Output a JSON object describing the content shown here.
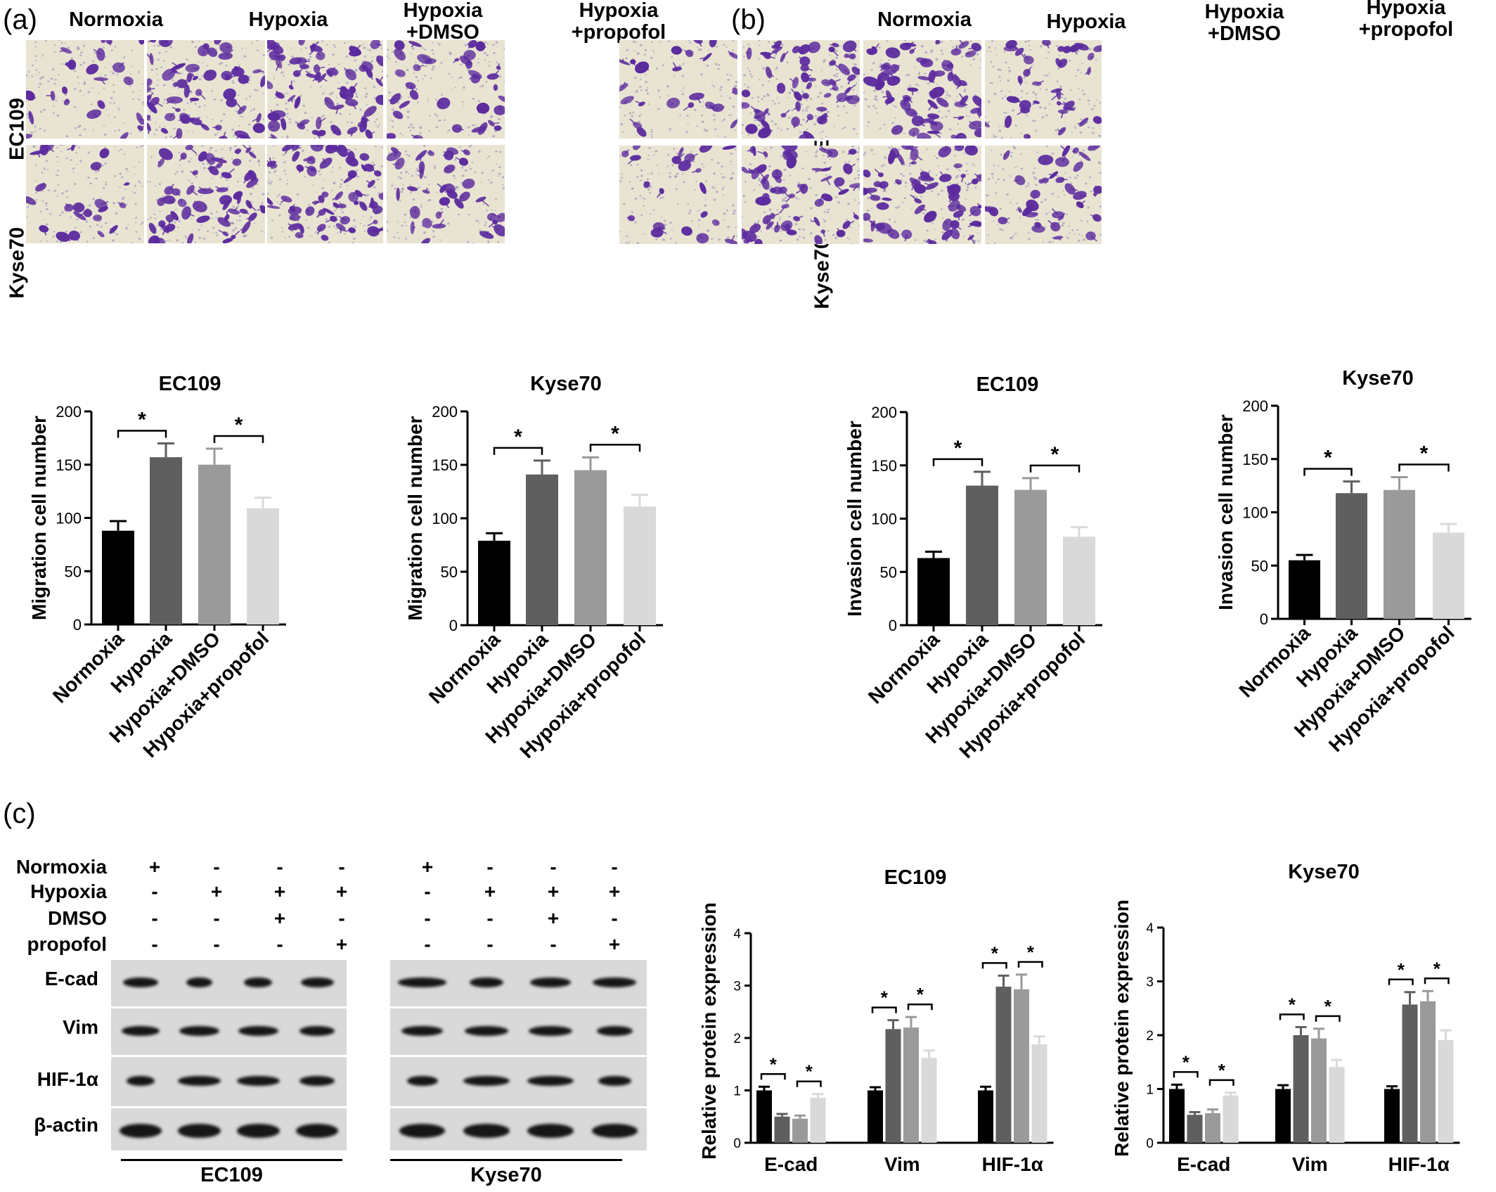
{
  "panels": {
    "a": "(a)",
    "b": "(b)",
    "c": "(c)"
  },
  "micrographs": {
    "columns": [
      "Normoxia",
      "Hypoxia",
      "Hypoxia\n+DMSO",
      "Hypoxia\n+propofol"
    ],
    "rows": [
      "EC109",
      "Kyse70"
    ]
  },
  "western": {
    "row_labels": [
      "Normoxia",
      "Hypoxia",
      "DMSO",
      "propofol"
    ],
    "signs": [
      [
        "+",
        "-",
        "-",
        "-"
      ],
      [
        "-",
        "+",
        "+",
        "+"
      ],
      [
        "-",
        "-",
        "+",
        "-"
      ],
      [
        "-",
        "-",
        "-",
        "+"
      ]
    ],
    "proteins": [
      "E-cad",
      "Vim",
      "HIF-1α",
      "β-actin"
    ],
    "cell_lines": [
      "EC109",
      "Kyse70"
    ]
  },
  "colors": {
    "normoxia": "#000000",
    "hypoxia": "#5f5f5f",
    "hypoxia_dmso": "#9a9a9a",
    "hypoxia_propofol": "#d9d9d9",
    "stain": "#5b2a9e"
  },
  "chart_data": [
    {
      "type": "bar",
      "title": "EC109",
      "ylabel": "Migration cell number",
      "categories": [
        "Normoxia",
        "Hypoxia",
        "Hypoxia+DMSO",
        "Hypoxia+propofol"
      ],
      "values": [
        88,
        157,
        150,
        109
      ],
      "errors": [
        9,
        13,
        15,
        10
      ],
      "ylim": [
        0,
        200
      ],
      "yticks": [
        "0",
        "50",
        "100",
        "150",
        "200"
      ],
      "significance": [
        [
          0,
          1,
          "*"
        ],
        [
          2,
          3,
          "*"
        ]
      ]
    },
    {
      "type": "bar",
      "title": "Kyse70",
      "ylabel": "Migration cell number",
      "categories": [
        "Normoxia",
        "Hypoxia",
        "Hypoxia+DMSO",
        "Hypoxia+propofol"
      ],
      "values": [
        79,
        141,
        145,
        111
      ],
      "errors": [
        7,
        13,
        12,
        11
      ],
      "ylim": [
        0,
        200
      ],
      "yticks": [
        "0",
        "50",
        "100",
        "150",
        "200"
      ],
      "significance": [
        [
          0,
          1,
          "*"
        ],
        [
          2,
          3,
          "*"
        ]
      ]
    },
    {
      "type": "bar",
      "title": "EC109",
      "ylabel": "Invasion cell number",
      "categories": [
        "Normoxia",
        "Hypoxia",
        "Hypoxia+DMSO",
        "Hypoxia+propofol"
      ],
      "values": [
        63,
        131,
        127,
        83
      ],
      "errors": [
        6,
        13,
        11,
        9
      ],
      "ylim": [
        0,
        200
      ],
      "yticks": [
        "0",
        "50",
        "100",
        "150",
        "200"
      ],
      "significance": [
        [
          0,
          1,
          "*"
        ],
        [
          2,
          3,
          "*"
        ]
      ]
    },
    {
      "type": "bar",
      "title": "Kyse70",
      "ylabel": "Invasion cell number",
      "categories": [
        "Normoxia",
        "Hypoxia",
        "Hypoxia+DMSO",
        "Hypoxia+propofol"
      ],
      "values": [
        55,
        118,
        121,
        81
      ],
      "errors": [
        5,
        11,
        12,
        8
      ],
      "ylim": [
        0,
        200
      ],
      "yticks": [
        "0",
        "50",
        "100",
        "150",
        "200"
      ],
      "significance": [
        [
          0,
          1,
          "*"
        ],
        [
          2,
          3,
          "*"
        ]
      ]
    },
    {
      "type": "bar",
      "title": "EC109",
      "ylabel": "Relative protein expression",
      "categories": [
        "E-cad",
        "Vim",
        "HIF-1α"
      ],
      "series": [
        {
          "values": [
            1.0,
            1.0,
            1.0
          ],
          "errors": [
            0.07,
            0.06,
            0.07
          ]
        },
        {
          "values": [
            0.5,
            2.17,
            2.98
          ],
          "errors": [
            0.05,
            0.17,
            0.21
          ]
        },
        {
          "values": [
            0.46,
            2.2,
            2.93
          ],
          "errors": [
            0.06,
            0.2,
            0.28
          ]
        },
        {
          "values": [
            0.86,
            1.62,
            1.88
          ],
          "errors": [
            0.07,
            0.14,
            0.15
          ]
        }
      ],
      "ylim": [
        0,
        4
      ],
      "yticks": [
        "0",
        "1",
        "2",
        "3",
        "4"
      ],
      "significance_per_group": [
        "*",
        "*"
      ]
    },
    {
      "type": "bar",
      "title": "Kyse70",
      "ylabel": "Relative protein expression",
      "categories": [
        "E-cad",
        "Vim",
        "HIF-1α"
      ],
      "series": [
        {
          "values": [
            1.0,
            1.0,
            1.0
          ],
          "errors": [
            0.08,
            0.07,
            0.05
          ]
        },
        {
          "values": [
            0.52,
            2.0,
            2.57
          ],
          "errors": [
            0.05,
            0.15,
            0.23
          ]
        },
        {
          "values": [
            0.55,
            1.94,
            2.63
          ],
          "errors": [
            0.07,
            0.18,
            0.19
          ]
        },
        {
          "values": [
            0.88,
            1.41,
            1.91
          ],
          "errors": [
            0.05,
            0.13,
            0.18
          ]
        }
      ],
      "ylim": [
        0,
        4
      ],
      "yticks": [
        "0",
        "1",
        "2",
        "3",
        "4"
      ],
      "significance_per_group": [
        "*",
        "*"
      ]
    }
  ]
}
